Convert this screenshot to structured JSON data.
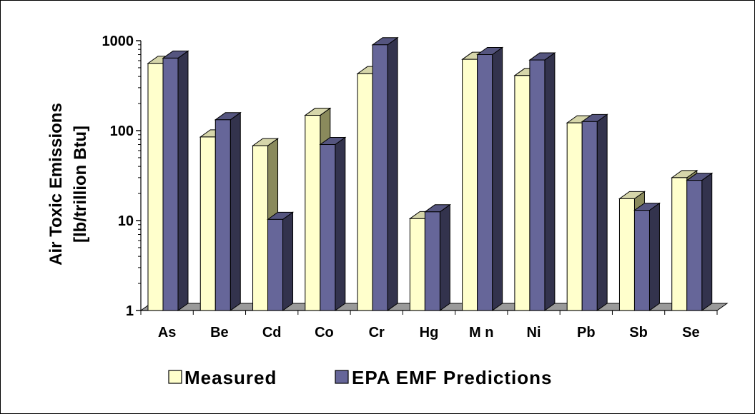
{
  "chart_data": {
    "type": "bar",
    "categories": [
      "As",
      "Be",
      "Cd",
      "Co",
      "Cr",
      "Hg",
      "M n",
      "Ni",
      "Pb",
      "Sb",
      "Se"
    ],
    "series": [
      {
        "name": "Measured",
        "values": [
          560,
          85,
          68,
          148,
          430,
          10.5,
          620,
          410,
          122,
          17.5,
          30
        ]
      },
      {
        "name": "EPA EMF Predictions",
        "values": [
          640,
          132,
          10.3,
          70,
          900,
          12.5,
          700,
          610,
          126,
          13,
          28
        ]
      }
    ],
    "ylabel": "Air Toxic Emissions",
    "ylabel_unit": "[lb/trillion Btu]",
    "xlabel": "",
    "title": "",
    "yscale": "log",
    "ylim": [
      1,
      1000
    ],
    "yticks": [
      "1",
      "10",
      "100",
      "1000"
    ],
    "legend_position": "bottom",
    "colors": {
      "Measured": {
        "front": "#ffffcc",
        "side": "#8a8a5c",
        "top": "#d6d6aa"
      },
      "EPA EMF Predictions": {
        "front": "#666699",
        "side": "#33334d",
        "top": "#55557f"
      },
      "floor": "#9a9a9a"
    }
  }
}
